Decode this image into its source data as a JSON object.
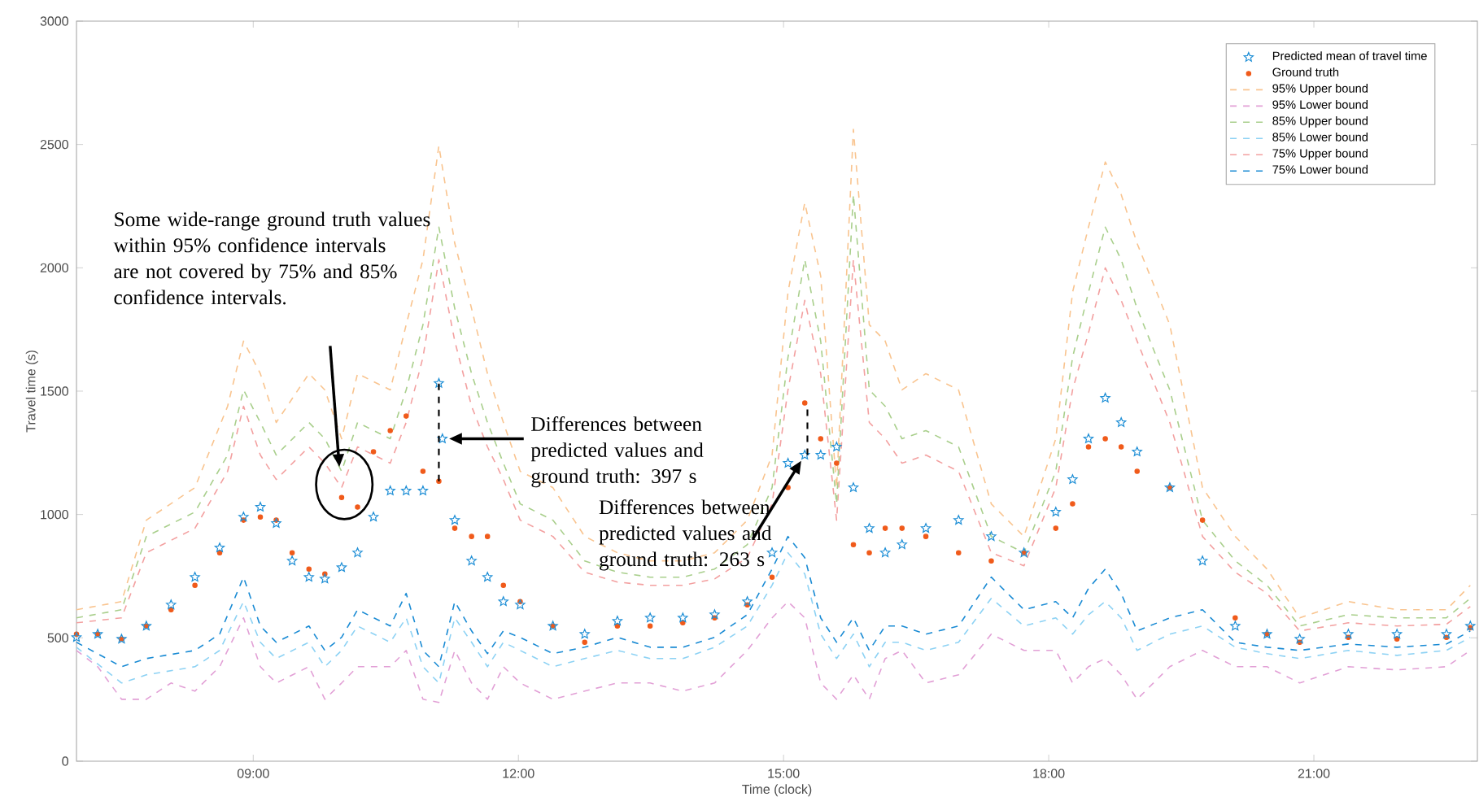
{
  "chart_data": {
    "type": "line",
    "xlabel": "Time (clock)",
    "ylabel": "Travel time (s)",
    "xlim": [
      7,
      22.85
    ],
    "ylim": [
      0,
      3000
    ],
    "xticks": [
      {
        "value": 9,
        "label": "09:00"
      },
      {
        "value": 12,
        "label": "12:00"
      },
      {
        "value": 15,
        "label": "15:00"
      },
      {
        "value": 18,
        "label": "18:00"
      },
      {
        "value": 21,
        "label": "21:00"
      }
    ],
    "yticks": [
      0,
      500,
      1000,
      1500,
      2000,
      2500,
      3000
    ],
    "legend": "top right",
    "annotations": [
      "Some wide-range ground truth values within 95% confidence intervals are not covered by 75% and 85% confidence intervals.",
      "Differences between predicted values and ground truth: 397 s",
      {
        "text": "Differences between predicted values and ground truth: 263 s",
        "x": 15.24,
        "y": 1241
      }
    ],
    "series": [
      {
        "name": "Predicted mean of travel time",
        "type": "scatter",
        "marker": "star",
        "color": "#1f8fd6",
        "x": [
          7.0,
          7.24,
          7.51,
          7.79,
          8.07,
          8.34,
          8.62,
          8.89,
          9.08,
          9.26,
          9.44,
          9.63,
          9.81,
          10.0,
          10.18,
          10.36,
          10.55,
          10.73,
          10.92,
          11.1,
          11.14,
          11.28,
          11.47,
          11.65,
          11.83,
          12.02,
          12.39,
          12.75,
          13.12,
          13.49,
          13.86,
          14.22,
          14.59,
          14.87,
          15.05,
          15.24,
          15.42,
          15.6,
          15.79,
          15.97,
          16.15,
          16.34,
          16.61,
          16.98,
          17.35,
          17.72,
          18.08,
          18.27,
          18.45,
          18.64,
          18.82,
          19.0,
          19.37,
          19.74,
          20.11,
          20.47,
          20.84,
          21.39,
          21.94,
          22.5,
          22.77
        ],
        "values": [
          502,
          515,
          495,
          548,
          634,
          746,
          865,
          990,
          1030,
          964,
          812,
          746,
          739,
          785,
          845,
          990,
          1096,
          1096,
          1096,
          1532,
          1307,
          977,
          812,
          746,
          647,
          634,
          548,
          515,
          568,
          581,
          581,
          594,
          647,
          845,
          1208,
          1241,
          1241,
          1274,
          1109,
          944,
          845,
          878,
          944,
          977,
          911,
          845,
          1010,
          1142,
          1307,
          1472,
          1373,
          1254,
          1109,
          812,
          548,
          515,
          495,
          515,
          515,
          515,
          548
        ]
      },
      {
        "name": "Ground truth",
        "type": "scatter",
        "marker": "circle",
        "color": "#f05a1a",
        "x": [
          7.0,
          7.24,
          7.51,
          7.79,
          8.07,
          8.34,
          8.62,
          8.89,
          9.08,
          9.26,
          9.44,
          9.63,
          9.81,
          10.0,
          10.18,
          10.36,
          10.55,
          10.73,
          10.92,
          11.1,
          11.28,
          11.47,
          11.65,
          11.83,
          12.02,
          12.39,
          12.75,
          13.12,
          13.49,
          13.86,
          14.22,
          14.59,
          14.87,
          15.05,
          15.24,
          15.42,
          15.6,
          15.79,
          15.97,
          16.15,
          16.34,
          16.61,
          16.98,
          17.35,
          17.72,
          18.08,
          18.27,
          18.45,
          18.64,
          18.82,
          19.0,
          19.37,
          19.74,
          20.11,
          20.47,
          20.84,
          21.39,
          21.94,
          22.5,
          22.77
        ],
        "values": [
          515,
          515,
          495,
          548,
          614,
          713,
          845,
          977,
          990,
          977,
          845,
          779,
          759,
          1069,
          1030,
          1254,
          1340,
          1399,
          1175,
          1135,
          944,
          911,
          911,
          713,
          647,
          548,
          482,
          548,
          548,
          561,
          581,
          634,
          746,
          1109,
          1452,
          1307,
          1208,
          878,
          845,
          944,
          944,
          911,
          845,
          812,
          845,
          944,
          1043,
          1274,
          1307,
          1274,
          1175,
          1109,
          977,
          581,
          515,
          482,
          502,
          495,
          502,
          541
        ]
      },
      {
        "name": "95% Upper bound",
        "type": "line",
        "line_style": "dashed",
        "color": "#f9c48f",
        "x": [
          7.0,
          7.51,
          7.79,
          8.34,
          8.71,
          8.89,
          9.08,
          9.26,
          9.63,
          9.81,
          10.0,
          10.18,
          10.55,
          10.73,
          10.92,
          11.1,
          11.28,
          11.47,
          11.65,
          11.83,
          12.02,
          12.39,
          12.75,
          13.12,
          13.49,
          13.86,
          14.22,
          14.59,
          14.87,
          15.05,
          15.24,
          15.42,
          15.6,
          15.79,
          15.97,
          16.15,
          16.34,
          16.61,
          16.98,
          17.35,
          17.72,
          18.08,
          18.27,
          18.45,
          18.64,
          18.82,
          19.0,
          19.37,
          19.74,
          20.11,
          20.47,
          20.84,
          21.39,
          21.94,
          22.5,
          22.77
        ],
        "values": [
          614,
          647,
          977,
          1109,
          1439,
          1703,
          1571,
          1373,
          1571,
          1505,
          1307,
          1571,
          1505,
          1769,
          2033,
          2495,
          2099,
          1835,
          1571,
          1373,
          1175,
          1109,
          911,
          845,
          812,
          812,
          845,
          977,
          1241,
          1901,
          2264,
          1967,
          1109,
          2561,
          1769,
          1703,
          1505,
          1571,
          1505,
          1043,
          911,
          1307,
          1901,
          2165,
          2429,
          2297,
          2099,
          1769,
          1109,
          911,
          779,
          581,
          647,
          614,
          614,
          713
        ]
      },
      {
        "name": "95% Lower bound",
        "type": "line",
        "line_style": "dashed",
        "color": "#e2a0d6",
        "x": [
          7.0,
          7.24,
          7.51,
          7.79,
          8.07,
          8.34,
          8.62,
          8.89,
          9.08,
          9.26,
          9.63,
          9.81,
          10.0,
          10.18,
          10.55,
          10.73,
          10.92,
          11.1,
          11.28,
          11.47,
          11.65,
          11.83,
          12.02,
          12.39,
          12.75,
          13.12,
          13.49,
          13.86,
          14.22,
          14.59,
          14.87,
          15.05,
          15.24,
          15.42,
          15.6,
          15.79,
          15.97,
          16.15,
          16.34,
          16.61,
          16.98,
          17.35,
          17.72,
          18.08,
          18.27,
          18.45,
          18.64,
          18.82,
          19.0,
          19.37,
          19.74,
          20.11,
          20.47,
          20.84,
          21.39,
          21.94,
          22.5,
          22.77
        ],
        "values": [
          449,
          383,
          251,
          251,
          317,
          284,
          383,
          581,
          383,
          317,
          383,
          251,
          317,
          383,
          383,
          449,
          251,
          238,
          449,
          317,
          251,
          383,
          317,
          251,
          284,
          317,
          317,
          284,
          317,
          449,
          581,
          647,
          581,
          317,
          251,
          350,
          251,
          416,
          449,
          317,
          350,
          515,
          449,
          449,
          317,
          383,
          416,
          350,
          251,
          383,
          449,
          383,
          383,
          317,
          383,
          370,
          383,
          449
        ]
      },
      {
        "name": "85% Upper bound",
        "type": "line",
        "line_style": "dashed",
        "color": "#a9cf8c",
        "x": [
          7.0,
          7.51,
          7.79,
          8.34,
          8.71,
          8.89,
          9.08,
          9.26,
          9.63,
          9.81,
          10.0,
          10.18,
          10.55,
          10.73,
          10.92,
          11.1,
          11.28,
          11.47,
          11.65,
          11.83,
          12.02,
          12.39,
          12.75,
          13.12,
          13.49,
          13.86,
          14.22,
          14.59,
          14.87,
          15.05,
          15.24,
          15.42,
          15.6,
          15.79,
          15.97,
          16.15,
          16.34,
          16.61,
          16.98,
          17.35,
          17.72,
          18.08,
          18.27,
          18.45,
          18.64,
          18.82,
          19.0,
          19.37,
          19.74,
          20.11,
          20.47,
          20.84,
          21.39,
          21.94,
          22.5,
          22.77
        ],
        "values": [
          581,
          614,
          911,
          1010,
          1241,
          1505,
          1373,
          1241,
          1373,
          1307,
          1175,
          1373,
          1307,
          1505,
          1769,
          2165,
          1835,
          1571,
          1373,
          1208,
          1043,
          977,
          812,
          766,
          746,
          746,
          779,
          878,
          1109,
          1637,
          2033,
          1703,
          1043,
          2297,
          1505,
          1439,
          1307,
          1340,
          1274,
          911,
          845,
          1175,
          1637,
          1901,
          2165,
          2033,
          1835,
          1505,
          977,
          812,
          713,
          548,
          594,
          581,
          581,
          660
        ]
      },
      {
        "name": "85% Lower bound",
        "type": "line",
        "line_style": "dashed",
        "color": "#8dd2f4",
        "x": [
          7.0,
          7.51,
          7.79,
          8.34,
          8.62,
          8.89,
          9.08,
          9.26,
          9.63,
          9.81,
          10.0,
          10.18,
          10.55,
          10.73,
          10.92,
          11.1,
          11.28,
          11.47,
          11.65,
          11.83,
          12.02,
          12.39,
          12.75,
          13.12,
          13.49,
          13.86,
          14.22,
          14.59,
          14.87,
          15.05,
          15.24,
          15.42,
          15.6,
          15.79,
          15.97,
          16.15,
          16.34,
          16.61,
          16.98,
          17.35,
          17.72,
          18.08,
          18.27,
          18.45,
          18.64,
          18.82,
          19.0,
          19.37,
          19.74,
          20.11,
          20.47,
          20.84,
          21.39,
          21.94,
          22.5,
          22.77
        ],
        "values": [
          462,
          317,
          350,
          383,
          449,
          647,
          482,
          416,
          482,
          383,
          449,
          548,
          482,
          581,
          383,
          317,
          581,
          482,
          383,
          482,
          449,
          383,
          416,
          449,
          416,
          416,
          462,
          548,
          713,
          845,
          759,
          515,
          416,
          515,
          383,
          482,
          482,
          449,
          482,
          660,
          548,
          581,
          515,
          594,
          647,
          581,
          449,
          515,
          548,
          462,
          436,
          416,
          449,
          429,
          449,
          502
        ]
      },
      {
        "name": "75% Upper bound",
        "type": "line",
        "line_style": "dashed",
        "color": "#f3a0a0",
        "x": [
          7.0,
          7.51,
          7.79,
          8.34,
          8.71,
          8.89,
          9.08,
          9.26,
          9.63,
          9.81,
          10.0,
          10.18,
          10.55,
          10.73,
          10.92,
          11.1,
          11.28,
          11.47,
          11.65,
          11.83,
          12.02,
          12.39,
          12.75,
          13.12,
          13.49,
          13.86,
          14.22,
          14.59,
          14.87,
          15.05,
          15.24,
          15.42,
          15.6,
          15.79,
          15.97,
          16.15,
          16.34,
          16.61,
          16.98,
          17.35,
          17.72,
          18.08,
          18.27,
          18.45,
          18.64,
          18.82,
          19.0,
          19.37,
          19.74,
          20.11,
          20.47,
          20.84,
          21.39,
          21.94,
          22.5,
          22.77
        ],
        "values": [
          561,
          581,
          845,
          944,
          1175,
          1439,
          1241,
          1142,
          1274,
          1208,
          1109,
          1274,
          1208,
          1373,
          1637,
          2033,
          1703,
          1439,
          1274,
          1142,
          977,
          911,
          766,
          726,
          713,
          713,
          739,
          825,
          1043,
          1505,
          1868,
          1571,
          977,
          2033,
          1373,
          1307,
          1208,
          1241,
          1175,
          845,
          792,
          1109,
          1505,
          1736,
          2000,
          1868,
          1703,
          1373,
          911,
          766,
          680,
          528,
          561,
          548,
          555,
          627
        ]
      },
      {
        "name": "75% Lower bound",
        "type": "line",
        "line_style": "dashed",
        "color": "#1a8bd4",
        "x": [
          7.0,
          7.51,
          7.79,
          8.34,
          8.62,
          8.89,
          9.08,
          9.26,
          9.63,
          9.81,
          10.0,
          10.18,
          10.55,
          10.73,
          10.92,
          11.1,
          11.28,
          11.47,
          11.65,
          11.83,
          12.02,
          12.39,
          12.75,
          13.12,
          13.49,
          13.86,
          14.22,
          14.59,
          14.87,
          15.05,
          15.24,
          15.42,
          15.6,
          15.79,
          15.97,
          16.15,
          16.34,
          16.61,
          16.98,
          17.35,
          17.72,
          18.08,
          18.27,
          18.45,
          18.64,
          18.82,
          19.0,
          19.37,
          19.74,
          20.11,
          20.47,
          20.84,
          21.39,
          21.94,
          22.5,
          22.77
        ],
        "values": [
          482,
          383,
          416,
          449,
          515,
          746,
          548,
          482,
          548,
          449,
          502,
          614,
          548,
          680,
          449,
          383,
          647,
          528,
          436,
          528,
          502,
          436,
          462,
          502,
          462,
          462,
          502,
          594,
          779,
          911,
          825,
          581,
          482,
          581,
          449,
          548,
          548,
          515,
          548,
          746,
          614,
          647,
          581,
          700,
          779,
          680,
          528,
          581,
          614,
          482,
          462,
          449,
          475,
          462,
          475,
          528
        ]
      }
    ]
  }
}
